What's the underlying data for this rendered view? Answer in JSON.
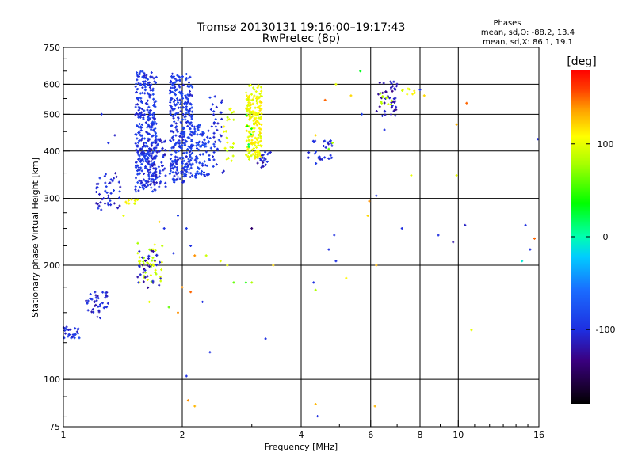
{
  "chart_data": {
    "type": "scatter",
    "title": "Tromsø 20130131 19:16:00–19:17:43",
    "subtitle": "RwPretec (8p)",
    "xlabel": "Frequency [MHz]",
    "ylabel": "Stationary phase Virtual Height [km]",
    "x_scale": "log",
    "y_scale": "log",
    "xlim": [
      1,
      16
    ],
    "ylim": [
      75,
      750
    ],
    "x_ticks": [
      1,
      2,
      4,
      6,
      8,
      10,
      16
    ],
    "x_tick_labels": [
      "1",
      "2",
      "4",
      "6",
      "8",
      "10",
      "16"
    ],
    "x_grid": [
      2,
      4,
      6,
      8,
      10
    ],
    "y_ticks": [
      75,
      100,
      200,
      300,
      400,
      500,
      600,
      750
    ],
    "y_tick_labels": [
      "75",
      "100",
      "200",
      "300",
      "400",
      "500",
      "600",
      "750"
    ],
    "y_grid": [
      100,
      200,
      300,
      400,
      500,
      600
    ],
    "grid": true,
    "stats": {
      "heading": "Phases",
      "line_o": "mean, sd,O: -88.2, 13.4",
      "line_x": "mean, sd,X:  86.1, 19.1"
    },
    "colorbar": {
      "label": "[deg]",
      "min": -180,
      "max": 180,
      "ticks": [
        100,
        0,
        -100
      ],
      "tick_labels": [
        "100",
        "0",
        "-100"
      ]
    },
    "clusters": [
      {
        "f": [
          1.52,
          1.72
        ],
        "h": [
          310,
          650
        ],
        "phase": -95,
        "n": 340
      },
      {
        "f": [
          1.62,
          1.82
        ],
        "h": [
          320,
          430
        ],
        "phase": -105,
        "n": 80
      },
      {
        "f": [
          1.86,
          2.12
        ],
        "h": [
          330,
          640
        ],
        "phase": -95,
        "n": 320
      },
      {
        "f": [
          2.1,
          2.35
        ],
        "h": [
          340,
          470
        ],
        "phase": -90,
        "n": 90
      },
      {
        "f": [
          2.35,
          2.55
        ],
        "h": [
          350,
          560
        ],
        "phase": -100,
        "n": 40
      },
      {
        "f": [
          2.55,
          2.7
        ],
        "h": [
          370,
          520
        ],
        "phase": 95,
        "n": 25
      },
      {
        "f": [
          2.9,
          3.18
        ],
        "h": [
          380,
          600
        ],
        "phase": 105,
        "n": 200
      },
      {
        "f": [
          2.9,
          3.0
        ],
        "h": [
          400,
          520
        ],
        "phase": 30,
        "n": 6
      },
      {
        "f": [
          3.1,
          3.35
        ],
        "h": [
          360,
          400
        ],
        "phase": -110,
        "n": 20
      },
      {
        "f": [
          1.2,
          1.4
        ],
        "h": [
          280,
          350
        ],
        "phase": -105,
        "n": 45
      },
      {
        "f": [
          1.4,
          1.55
        ],
        "h": [
          290,
          300
        ],
        "phase": 100,
        "n": 10
      },
      {
        "f": [
          1.54,
          1.78
        ],
        "h": [
          180,
          230
        ],
        "phase": 90,
        "n": 40
      },
      {
        "f": [
          1.54,
          1.78
        ],
        "h": [
          170,
          220
        ],
        "phase": -115,
        "n": 30
      },
      {
        "f": [
          1.14,
          1.3
        ],
        "h": [
          145,
          170
        ],
        "phase": -105,
        "n": 40
      },
      {
        "f": [
          1.0,
          1.1
        ],
        "h": [
          128,
          138
        ],
        "phase": -100,
        "n": 25
      },
      {
        "f": [
          4.15,
          4.8
        ],
        "h": [
          370,
          430
        ],
        "phase": -105,
        "n": 30
      },
      {
        "f": [
          6.2,
          7.0
        ],
        "h": [
          495,
          610
        ],
        "phase": -120,
        "n": 45
      },
      {
        "f": [
          6.3,
          6.8
        ],
        "h": [
          530,
          580
        ],
        "phase": 90,
        "n": 10
      },
      {
        "f": [
          7.2,
          7.8
        ],
        "h": [
          560,
          590
        ],
        "phase": 100,
        "n": 8
      }
    ],
    "scatter_points": [
      [
        1.25,
        500,
        -100
      ],
      [
        1.3,
        420,
        -100
      ],
      [
        1.35,
        440,
        -110
      ],
      [
        1.42,
        270,
        100
      ],
      [
        1.95,
        270,
        -90
      ],
      [
        2.05,
        250,
        -95
      ],
      [
        2.1,
        225,
        -100
      ],
      [
        2.15,
        212,
        140
      ],
      [
        2.3,
        212,
        90
      ],
      [
        2.5,
        205,
        100
      ],
      [
        2.6,
        200,
        100
      ],
      [
        2.7,
        180,
        60
      ],
      [
        2.9,
        180,
        40
      ],
      [
        3.0,
        180,
        80
      ],
      [
        3.0,
        250,
        -140
      ],
      [
        3.4,
        200,
        120
      ],
      [
        1.8,
        250,
        -100
      ],
      [
        1.75,
        260,
        120
      ],
      [
        1.9,
        215,
        -100
      ],
      [
        2.0,
        175,
        140
      ],
      [
        2.1,
        170,
        150
      ],
      [
        2.25,
        160,
        -100
      ],
      [
        1.95,
        150,
        140
      ],
      [
        1.85,
        155,
        60
      ],
      [
        2.35,
        118,
        -100
      ],
      [
        2.05,
        102,
        -100
      ],
      [
        2.07,
        88,
        140
      ],
      [
        2.15,
        85,
        130
      ],
      [
        1.65,
        160,
        100
      ],
      [
        1.55,
        180,
        -100
      ],
      [
        3.25,
        128,
        -100
      ],
      [
        4.3,
        180,
        -100
      ],
      [
        4.35,
        172,
        80
      ],
      [
        4.4,
        80,
        -100
      ],
      [
        4.35,
        86,
        130
      ],
      [
        4.7,
        220,
        -100
      ],
      [
        4.85,
        240,
        -100
      ],
      [
        4.9,
        205,
        -100
      ],
      [
        5.2,
        185,
        110
      ],
      [
        5.9,
        270,
        120
      ],
      [
        5.95,
        295,
        140
      ],
      [
        6.2,
        305,
        -100
      ],
      [
        6.2,
        200,
        130
      ],
      [
        6.15,
        85,
        130
      ],
      [
        5.7,
        500,
        -90
      ],
      [
        5.65,
        650,
        30
      ],
      [
        5.35,
        560,
        120
      ],
      [
        4.9,
        600,
        100
      ],
      [
        4.8,
        420,
        80
      ],
      [
        4.7,
        405,
        60
      ],
      [
        4.6,
        545,
        150
      ],
      [
        4.35,
        440,
        120
      ],
      [
        6.5,
        455,
        -100
      ],
      [
        7.2,
        250,
        -100
      ],
      [
        7.6,
        345,
        100
      ],
      [
        8.9,
        240,
        -100
      ],
      [
        9.7,
        230,
        -120
      ],
      [
        9.9,
        345,
        100
      ],
      [
        9.9,
        470,
        130
      ],
      [
        10.4,
        255,
        -110
      ],
      [
        10.5,
        535,
        150
      ],
      [
        10.8,
        135,
        100
      ],
      [
        14.8,
        255,
        -100
      ],
      [
        14.5,
        205,
        -10
      ],
      [
        15.2,
        220,
        -100
      ],
      [
        15.6,
        235,
        150
      ],
      [
        15.9,
        430,
        -100
      ],
      [
        8.2,
        560,
        120
      ],
      [
        8.0,
        580,
        -100
      ]
    ]
  }
}
